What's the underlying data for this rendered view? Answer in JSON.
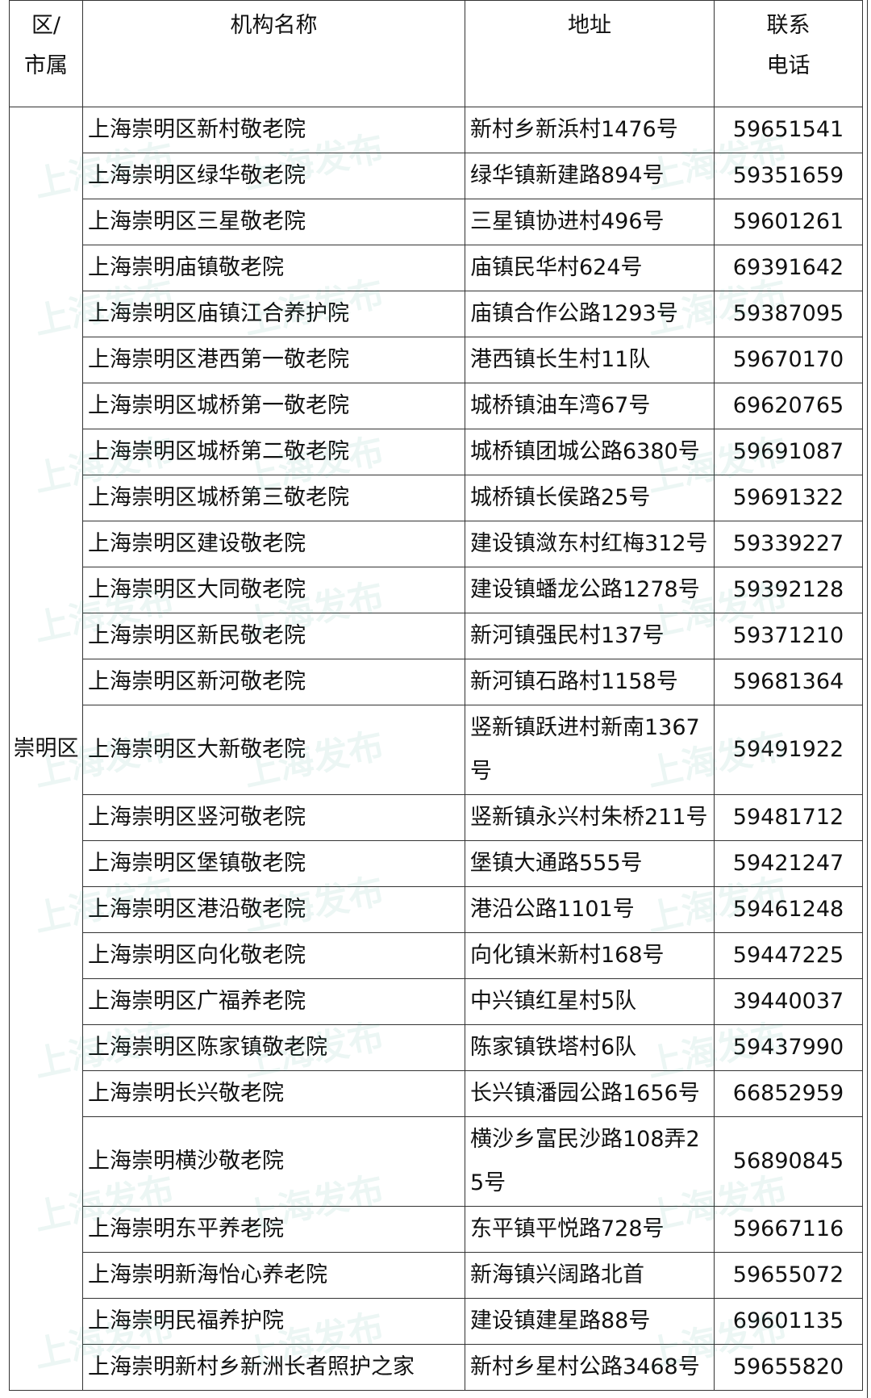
{
  "watermark": "上海发布",
  "table": {
    "header": [
      "区/\n市属",
      "机构名称",
      "地址",
      "联系\n电话"
    ],
    "district": "崇明区",
    "rows": [
      [
        "上海崇明区新村敬老院",
        "新村乡新浜村1476号",
        "59651541"
      ],
      [
        "上海崇明区绿华敬老院",
        "绿华镇新建路894号",
        "59351659"
      ],
      [
        "上海崇明区三星敬老院",
        "三星镇协进村496号",
        "59601261"
      ],
      [
        "上海崇明庙镇敬老院",
        "庙镇民华村624号",
        "69391642"
      ],
      [
        "上海崇明区庙镇江合养护院",
        "庙镇合作公路1293号",
        "59387095"
      ],
      [
        "上海崇明区港西第一敬老院",
        "港西镇长生村11队",
        "59670170"
      ],
      [
        "上海崇明区城桥第一敬老院",
        "城桥镇油车湾67号",
        "69620765"
      ],
      [
        "上海崇明区城桥第二敬老院",
        "城桥镇团城公路6380号",
        "59691087"
      ],
      [
        "上海崇明区城桥第三敬老院",
        "城桥镇长侯路25号",
        "59691322"
      ],
      [
        "上海崇明区建设敬老院",
        "建设镇潋东村红梅312号",
        "59339227"
      ],
      [
        "上海崇明区大同敬老院",
        "建设镇蟠龙公路1278号",
        "59392128"
      ],
      [
        "上海崇明区新民敬老院",
        "新河镇强民村137号",
        "59371210"
      ],
      [
        "上海崇明区新河敬老院",
        "新河镇石路村1158号",
        "59681364"
      ],
      [
        "上海崇明区大新敬老院",
        "竖新镇跃进村新南1367号",
        "59491922"
      ],
      [
        "上海崇明区竖河敬老院",
        "竖新镇永兴村朱桥211号",
        "59481712"
      ],
      [
        "上海崇明区堡镇敬老院",
        "堡镇大通路555号",
        "59421247"
      ],
      [
        "上海崇明区港沿敬老院",
        "港沿公路1101号",
        "59461248"
      ],
      [
        "上海崇明区向化敬老院",
        "向化镇米新村168号",
        "59447225"
      ],
      [
        "上海崇明区广福养老院",
        "中兴镇红星村5队",
        "39440037"
      ],
      [
        "上海崇明区陈家镇敬老院",
        "陈家镇铁塔村6队",
        "59437990"
      ],
      [
        "上海崇明长兴敬老院",
        "长兴镇潘园公路1656号",
        "66852959"
      ],
      [
        "上海崇明横沙敬老院",
        "横沙乡富民沙路108弄25号",
        "56890845"
      ],
      [
        "上海崇明东平养老院",
        "东平镇平悦路728号",
        "59667116"
      ],
      [
        "上海崇明新海怡心养老院",
        "新海镇兴阔路北首",
        "59655072"
      ],
      [
        "上海崇明民福养护院",
        "建设镇建星路88号",
        "69601135"
      ],
      [
        "上海崇明新村乡新洲长者照护之家",
        "新村乡星村公路3468号",
        "59655820"
      ]
    ]
  }
}
